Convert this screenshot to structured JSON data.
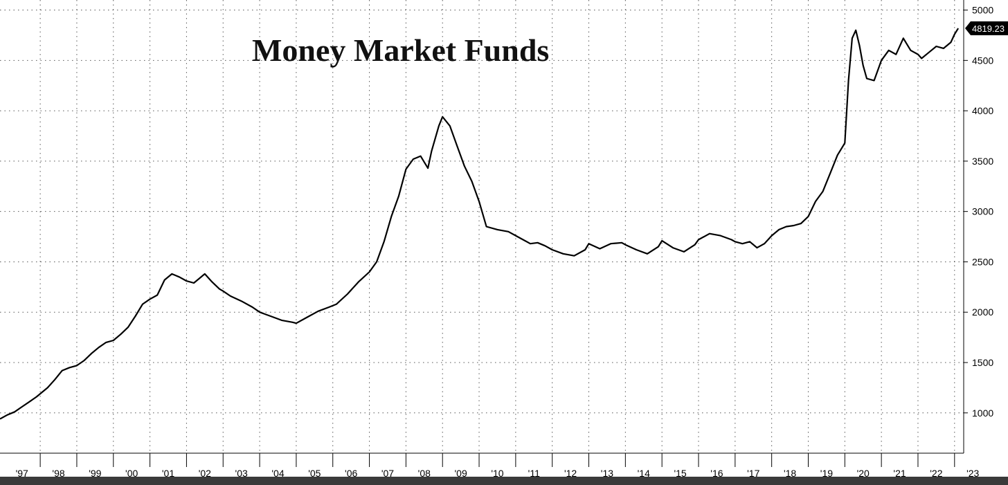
{
  "chart_data": {
    "type": "line",
    "title": "Money Market Funds",
    "xlabel": "",
    "ylabel": "",
    "ylim": [
      600,
      5100
    ],
    "xlim": [
      1996.9,
      2023.25
    ],
    "grid": true,
    "y_axis_side": "right",
    "y_ticks": [
      1000,
      1500,
      2000,
      2500,
      3000,
      3500,
      4000,
      4500,
      5000
    ],
    "x_tick_labels": [
      "'97",
      "'98",
      "'99",
      "'00",
      "'01",
      "'02",
      "'03",
      "'04",
      "'05",
      "'06",
      "'07",
      "'08",
      "'09",
      "'10",
      "'11",
      "'12",
      "'13",
      "'14",
      "'15",
      "'16",
      "'17",
      "'18",
      "'19",
      "'20",
      "'21",
      "'22",
      "'23"
    ],
    "last_value_label": "4819.23",
    "series": [
      {
        "x": [
          1996.9,
          1997.1,
          1997.3,
          1997.5,
          1997.7,
          1997.9,
          1998.0,
          1998.2,
          1998.4,
          1998.6,
          1998.8,
          1999.0,
          1999.2,
          1999.4,
          1999.6,
          1999.8,
          2000.0,
          2000.2,
          2000.4,
          2000.6,
          2000.8,
          2001.0,
          2001.2,
          2001.4,
          2001.6,
          2001.8,
          2002.0,
          2002.2,
          2002.3,
          2002.5,
          2002.7,
          2002.9,
          2003.0,
          2003.2,
          2003.5,
          2003.8,
          2004.0,
          2004.3,
          2004.6,
          2004.9,
          2005.0,
          2005.3,
          2005.6,
          2005.9,
          2006.1,
          2006.4,
          2006.7,
          2007.0,
          2007.2,
          2007.4,
          2007.6,
          2007.8,
          2008.0,
          2008.2,
          2008.4,
          2008.6,
          2008.7,
          2008.9,
          2009.0,
          2009.2,
          2009.4,
          2009.6,
          2009.8,
          2010.0,
          2010.2,
          2010.5,
          2010.8,
          2011.0,
          2011.2,
          2011.4,
          2011.6,
          2011.8,
          2012.0,
          2012.3,
          2012.6,
          2012.9,
          2013.0,
          2013.3,
          2013.6,
          2013.9,
          2014.0,
          2014.3,
          2014.6,
          2014.9,
          2015.0,
          2015.3,
          2015.6,
          2015.9,
          2016.0,
          2016.3,
          2016.6,
          2016.9,
          2017.0,
          2017.2,
          2017.4,
          2017.6,
          2017.8,
          2018.0,
          2018.2,
          2018.4,
          2018.6,
          2018.8,
          2019.0,
          2019.2,
          2019.4,
          2019.6,
          2019.8,
          2019.95,
          2020.0,
          2020.1,
          2020.2,
          2020.3,
          2020.4,
          2020.5,
          2020.6,
          2020.8,
          2021.0,
          2021.2,
          2021.4,
          2021.6,
          2021.8,
          2022.0,
          2022.1,
          2022.3,
          2022.5,
          2022.7,
          2022.9,
          2023.0,
          2023.1
        ],
        "y": [
          940,
          980,
          1010,
          1060,
          1110,
          1160,
          1190,
          1250,
          1330,
          1420,
          1450,
          1470,
          1520,
          1590,
          1650,
          1700,
          1720,
          1780,
          1850,
          1960,
          2080,
          2130,
          2170,
          2320,
          2380,
          2350,
          2310,
          2290,
          2320,
          2380,
          2300,
          2230,
          2210,
          2160,
          2110,
          2050,
          2000,
          1960,
          1920,
          1900,
          1890,
          1950,
          2010,
          2050,
          2080,
          2180,
          2300,
          2400,
          2500,
          2700,
          2950,
          3150,
          3420,
          3520,
          3550,
          3430,
          3600,
          3850,
          3940,
          3850,
          3650,
          3450,
          3300,
          3100,
          2850,
          2820,
          2800,
          2760,
          2720,
          2680,
          2690,
          2660,
          2620,
          2580,
          2560,
          2620,
          2680,
          2630,
          2680,
          2690,
          2670,
          2620,
          2580,
          2650,
          2710,
          2640,
          2600,
          2670,
          2720,
          2780,
          2760,
          2720,
          2700,
          2680,
          2700,
          2640,
          2680,
          2760,
          2820,
          2850,
          2860,
          2880,
          2950,
          3100,
          3200,
          3380,
          3560,
          3650,
          3680,
          4300,
          4720,
          4800,
          4650,
          4450,
          4320,
          4300,
          4500,
          4600,
          4560,
          4720,
          4600,
          4560,
          4520,
          4580,
          4640,
          4620,
          4680,
          4760,
          4819
        ]
      }
    ]
  }
}
